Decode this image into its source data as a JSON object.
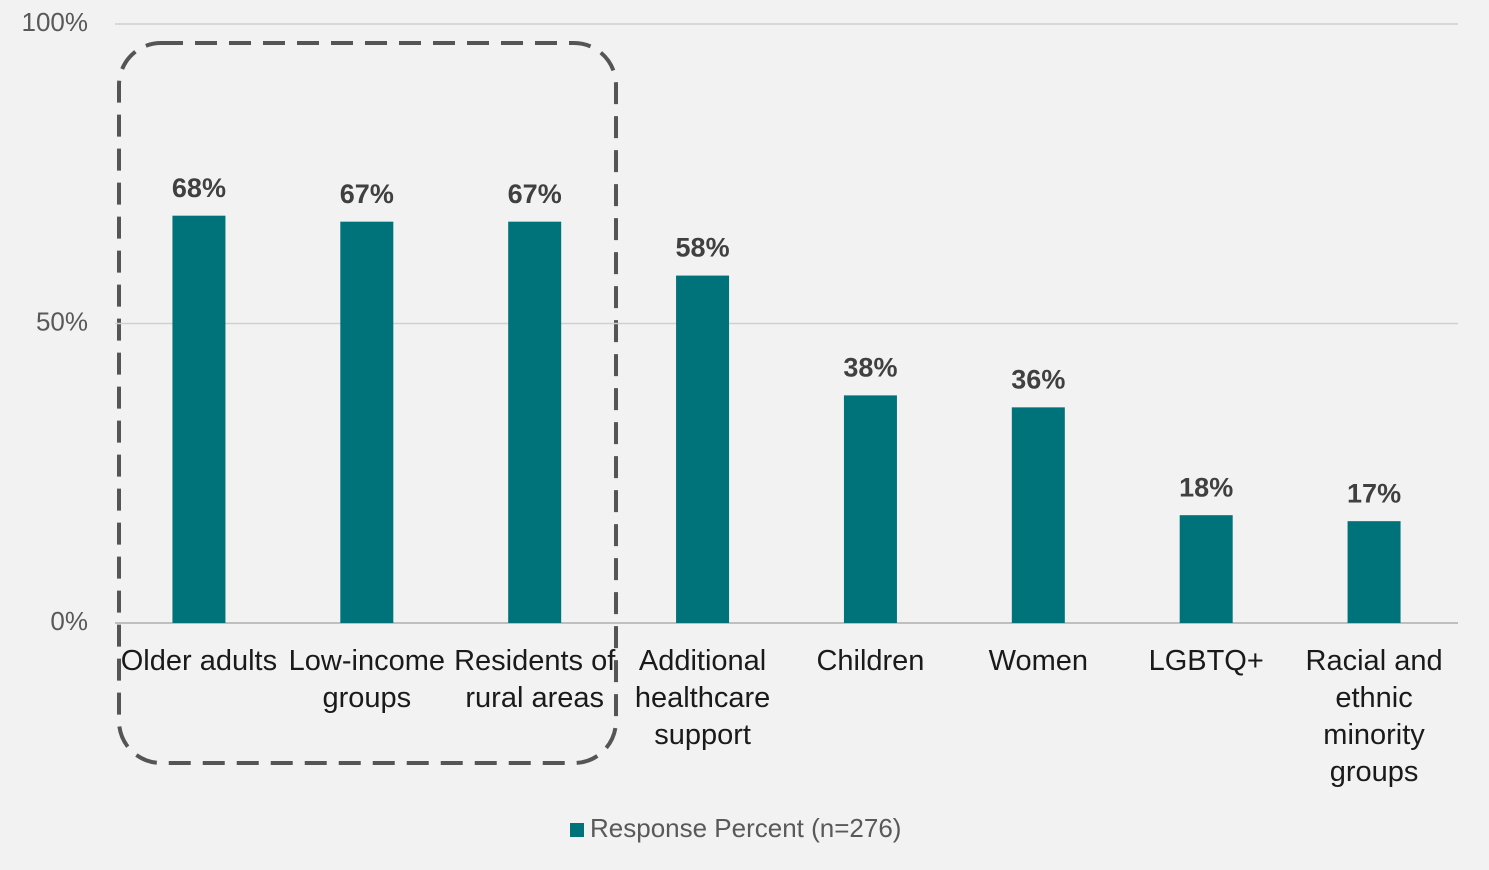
{
  "chart_data": {
    "type": "bar",
    "categories": [
      "Older adults",
      "Low-income groups",
      "Residents of rural areas",
      "Additional healthcare support",
      "Children",
      "Women",
      "LGBTQ+",
      "Racial and ethnic minority groups"
    ],
    "series": [
      {
        "name": "Response Percent (n=276)",
        "color": "#00727a",
        "values": [
          68,
          67,
          67,
          58,
          38,
          36,
          18,
          17
        ],
        "value_labels": [
          "68%",
          "67%",
          "67%",
          "58%",
          "38%",
          "36%",
          "18%",
          "17%"
        ]
      }
    ],
    "ylim": [
      0,
      100
    ],
    "yticks": [
      {
        "value": 0,
        "label": "0%"
      },
      {
        "value": 50,
        "label": "50%"
      },
      {
        "value": 100,
        "label": "100%"
      }
    ],
    "grid": true,
    "legend": "bottom"
  }
}
